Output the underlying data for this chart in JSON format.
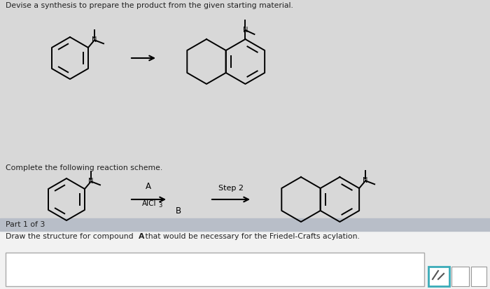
{
  "bg_color": "#d8d8d8",
  "bottom_bg_color": "#f2f2f2",
  "bar_color": "#b8bec8",
  "text_color": "#222222",
  "title1": "Devise a synthesis to prepare the product from the given starting material.",
  "title2": "Complete the following reaction scheme.",
  "part_label": "Part 1 of 3",
  "question_pre": "Draw the structure for compound ",
  "question_bold": "A",
  "question_post": " that would be necessary for the Friedel-Crafts acylation.",
  "lw": 1.4
}
